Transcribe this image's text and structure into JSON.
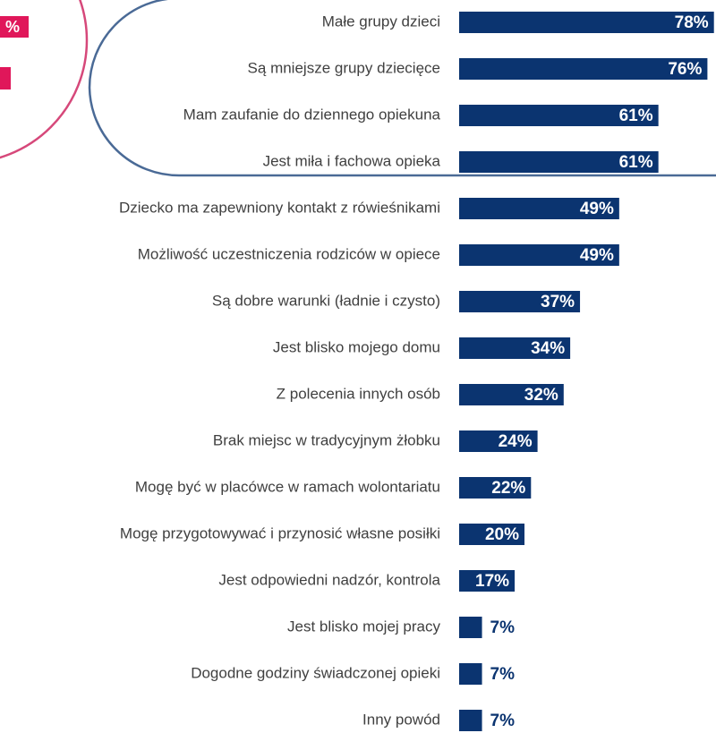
{
  "left_fragment": {
    "label": "%"
  },
  "chart_data": {
    "type": "bar",
    "orientation": "horizontal",
    "color": "#0b3470",
    "categories": [
      "Małe grupy dzieci",
      "Są mniejsze grupy dziecięce",
      "Mam zaufanie do dziennego opiekuna",
      "Jest miła i fachowa opieka",
      "Dziecko ma zapewniony kontakt z rówieśnikami",
      "Możliwość uczestniczenia rodziców w opiece",
      "Są dobre warunki (ładnie i czysto)",
      "Jest blisko mojego domu",
      "Z polecenia innych osób",
      "Brak miejsc w tradycyjnym żłobku",
      "Mogę być w placówce w ramach wolontariatu",
      "Mogę przygotowywać i przynosić własne posiłki",
      "Jest odpowiedni nadzór, kontrola",
      "Jest blisko mojej pracy",
      "Dogodne godziny świadczonej opieki",
      "Inny powód"
    ],
    "values": [
      78,
      76,
      61,
      61,
      49,
      49,
      37,
      34,
      32,
      24,
      22,
      20,
      17,
      7,
      7,
      7
    ],
    "value_labels": [
      "78%",
      "76%",
      "61%",
      "61%",
      "49%",
      "49%",
      "37%",
      "34%",
      "32%",
      "24%",
      "22%",
      "20%",
      "17%",
      "7%",
      "7%",
      "7%"
    ],
    "xlim": [
      0,
      80
    ]
  }
}
